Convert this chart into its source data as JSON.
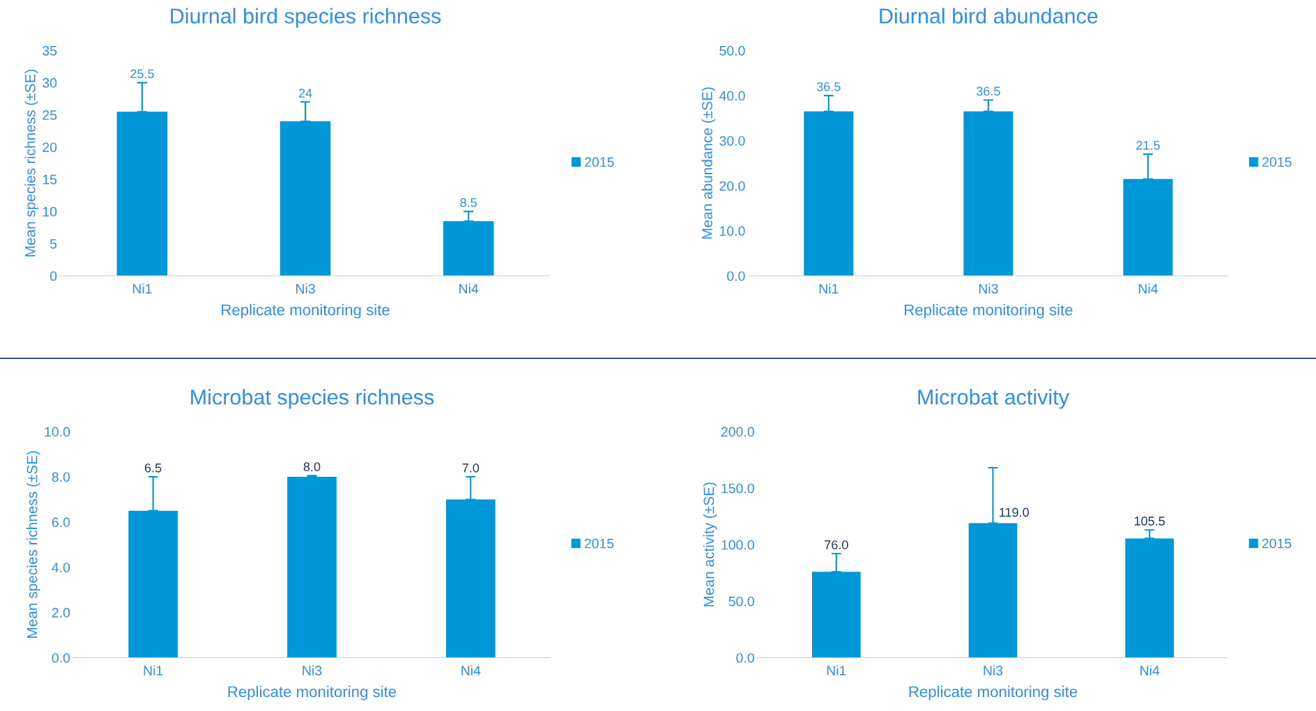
{
  "chart_data": [
    {
      "type": "bar",
      "title": "Diurnal bird species richness",
      "xlabel": "Replicate monitoring site",
      "ylabel": "Mean species richness (±SE)",
      "categories": [
        "Ni1",
        "Ni3",
        "Ni4"
      ],
      "series": [
        {
          "name": "2015",
          "color": "#0097d9",
          "values": [
            25.5,
            24,
            8.5
          ],
          "errors": [
            [
              25.5,
              30
            ],
            [
              24,
              27
            ],
            [
              8.5,
              10
            ]
          ]
        }
      ],
      "data_labels": true,
      "ylim": [
        0,
        35
      ],
      "yticks": [
        0,
        5,
        10,
        15,
        20,
        25,
        30,
        35
      ],
      "legend": "right",
      "grid": false
    },
    {
      "type": "bar",
      "title": "Diurnal bird abundance",
      "xlabel": "Replicate monitoring site",
      "ylabel": "Mean abundance (±SE)",
      "categories": [
        "Ni1",
        "Ni3",
        "Ni4"
      ],
      "series": [
        {
          "name": "2015",
          "color": "#0097d9",
          "values": [
            36.5,
            36.5,
            21.5
          ],
          "errors": [
            [
              36.5,
              40
            ],
            [
              36.5,
              39
            ],
            [
              21.5,
              27
            ]
          ]
        }
      ],
      "data_labels": true,
      "ylim": [
        0,
        50
      ],
      "yticks": [
        {
          "value": 0,
          "label": "0.0"
        },
        {
          "value": 10,
          "label": "10.0"
        },
        {
          "value": 20,
          "label": "20.0"
        },
        {
          "value": 30,
          "label": "30.0"
        },
        {
          "value": 40,
          "label": "40.0"
        },
        {
          "value": 50,
          "label": "50.0"
        }
      ],
      "legend": "right",
      "grid": false
    },
    {
      "type": "bar",
      "title": "Microbat species richness",
      "xlabel": "Replicate monitoring site",
      "ylabel": "Mean species richness (±SE)",
      "categories": [
        "Ni1",
        "Ni3",
        "Ni4"
      ],
      "series": [
        {
          "name": "2015",
          "color": "#0097d9",
          "values": [
            6.5,
            8,
            7
          ],
          "errors": [
            [
              6.5,
              8
            ],
            [
              8,
              8.05
            ],
            [
              7,
              8
            ]
          ],
          "value_labels": [
            "6.5",
            "8.0",
            "7.0"
          ]
        }
      ],
      "ylim": [
        0,
        10
      ],
      "yticks": [
        {
          "value": 0,
          "label": "0.0"
        },
        {
          "value": 2,
          "label": "2.0"
        },
        {
          "value": 4,
          "label": "4.0"
        },
        {
          "value": 6,
          "label": "6.0"
        },
        {
          "value": 8,
          "label": "8.0"
        },
        {
          "value": 10,
          "label": "10.0"
        }
      ],
      "legend": "right",
      "grid": false
    },
    {
      "type": "bar",
      "title": "Microbat activity",
      "xlabel": "Replicate monitoring site",
      "ylabel": "Mean activity (±SE)",
      "categories": [
        "Ni1",
        "Ni3",
        "Ni4"
      ],
      "series": [
        {
          "name": "2015",
          "color": "#0097d9",
          "values": [
            76,
            119,
            105.5
          ],
          "errors": [
            [
              76,
              92
            ],
            [
              119,
              168
            ],
            [
              105.5,
              113
            ]
          ],
          "value_labels": [
            "76.0",
            "119.0",
            "105.5"
          ]
        }
      ],
      "ylim": [
        0,
        200
      ],
      "yticks": [
        {
          "value": 0,
          "label": "0.0"
        },
        {
          "value": 50,
          "label": "50.0"
        },
        {
          "value": 100,
          "label": "100.0"
        },
        {
          "value": 150,
          "label": "150.0"
        },
        {
          "value": 200,
          "label": "200.0"
        }
      ],
      "legend": "right",
      "grid": false
    }
  ]
}
